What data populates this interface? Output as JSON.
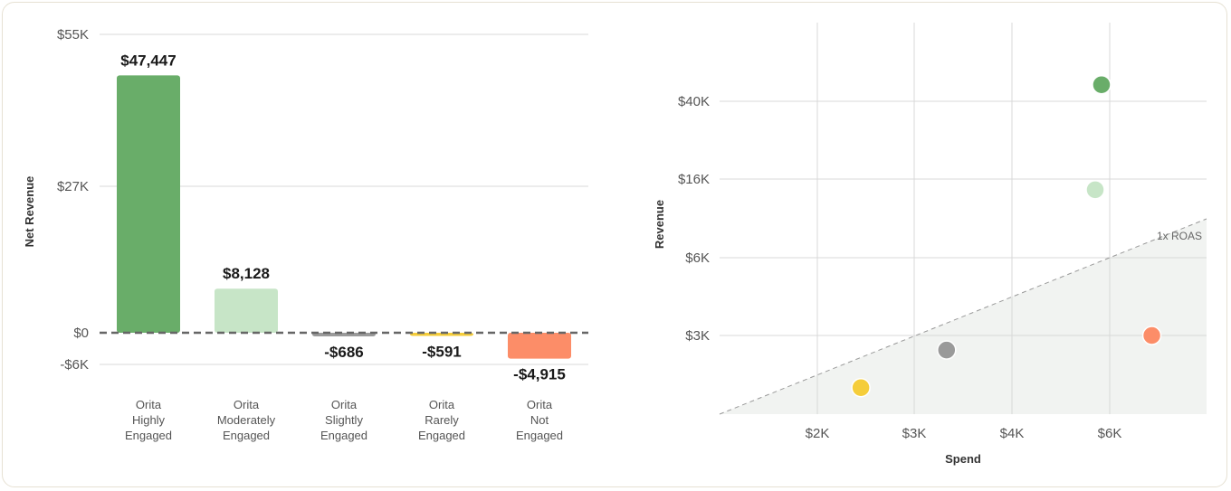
{
  "colors": {
    "green": "#69ad69",
    "light_green": "#c7e5c7",
    "grey": "#9a9a9a",
    "yellow": "#f5cd3a",
    "orange": "#fc8d68",
    "grid": "#d8d8d8",
    "zero_line": "#666666",
    "region": "#f1f3f1"
  },
  "chart_data": [
    {
      "type": "bar",
      "ylabel": "Net Revenue",
      "xlabel": "",
      "ylim": [
        -6000,
        55000
      ],
      "y_ticks": [
        {
          "value": 55000,
          "label": "$55K"
        },
        {
          "value": 27000,
          "label": "$27K"
        },
        {
          "value": 0,
          "label": "$0"
        },
        {
          "value": -6000,
          "label": "-$6K"
        }
      ],
      "grid": true,
      "zero_line": "dashed",
      "categories": [
        [
          "Orita",
          "Highly",
          "Engaged"
        ],
        [
          "Orita",
          "Moderately",
          "Engaged"
        ],
        [
          "Orita",
          "Slightly",
          "Engaged"
        ],
        [
          "Orita",
          "Rarely",
          "Engaged"
        ],
        [
          "Orita",
          "Not",
          "Engaged"
        ]
      ],
      "values": [
        47447,
        8128,
        -686,
        -591,
        -4915
      ],
      "value_labels": [
        "$47,447",
        "$8,128",
        "-$686",
        "-$591",
        "-$4,915"
      ],
      "bar_colors": [
        "green",
        "light_green",
        "grey",
        "yellow",
        "orange"
      ]
    },
    {
      "type": "scatter",
      "xlabel": "Spend",
      "ylabel": "Revenue",
      "x_ticks": [
        "$2K",
        "$3K",
        "$4K",
        "$6K"
      ],
      "y_ticks": [
        "$40K",
        "$16K",
        "$6K",
        "$3K"
      ],
      "grid": true,
      "points": [
        {
          "spend": 5800,
          "revenue": 45000,
          "color": "green"
        },
        {
          "spend": 5650,
          "revenue": 14000,
          "color": "light_green"
        },
        {
          "spend": 3300,
          "revenue": 2400,
          "color": "grey"
        },
        {
          "spend": 2400,
          "revenue": 1350,
          "color": "yellow"
        },
        {
          "spend": 6800,
          "revenue": 3000,
          "color": "orange"
        }
      ],
      "reference_line": {
        "label": "1x ROAS",
        "style": "dashed",
        "shaded_below": true
      }
    }
  ]
}
